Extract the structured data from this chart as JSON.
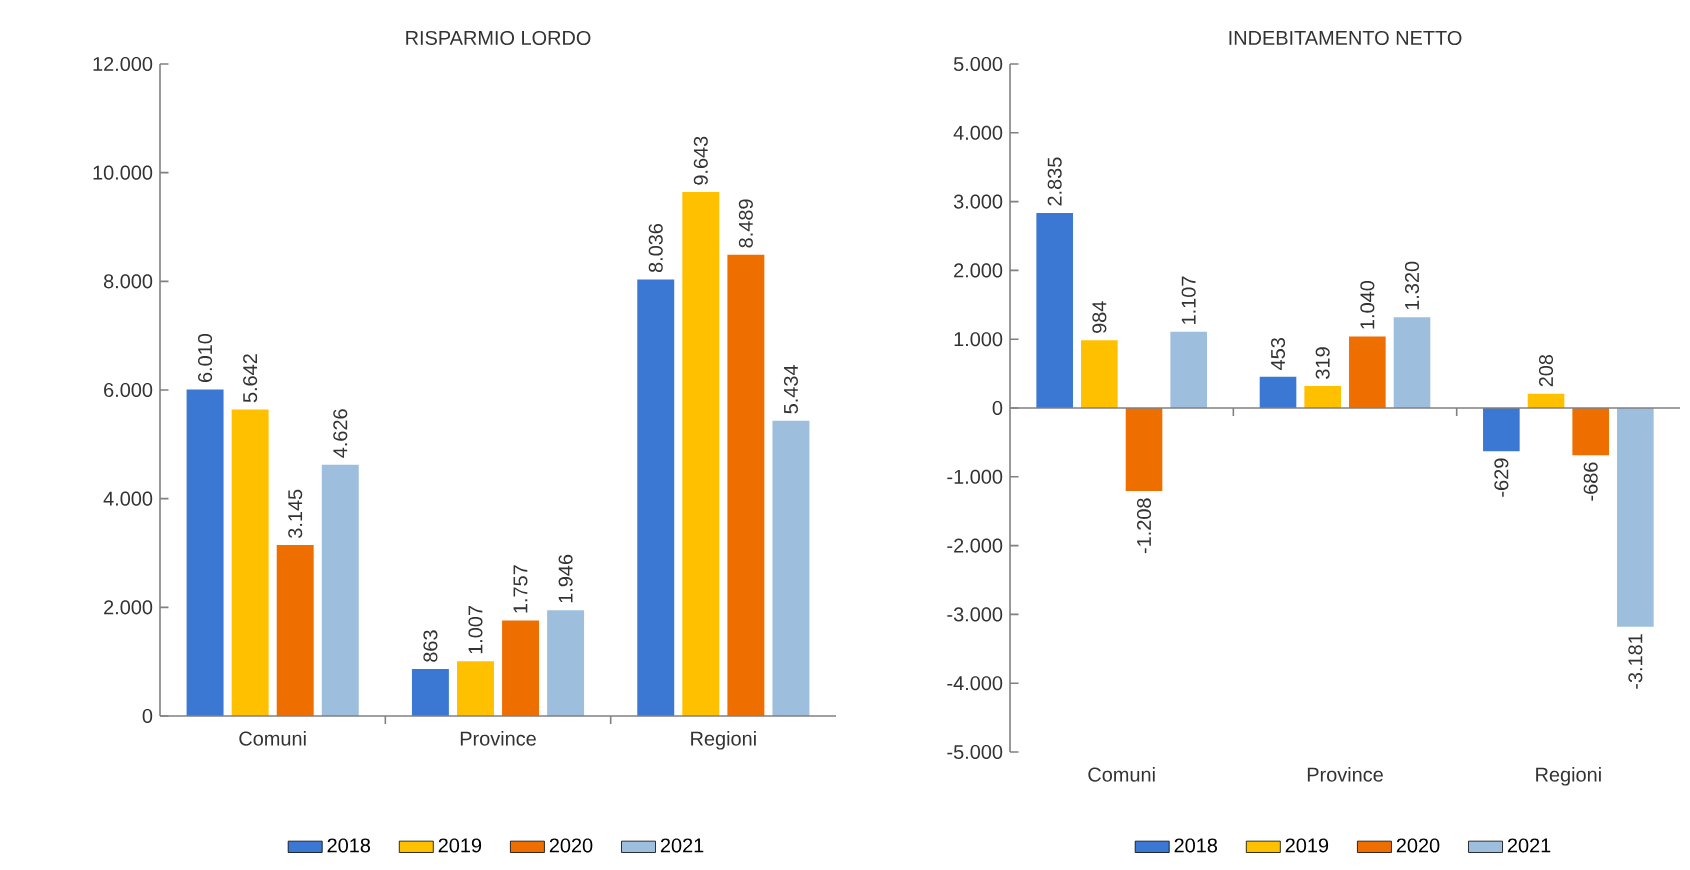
{
  "chart_data": [
    {
      "type": "bar",
      "title": "RISPARMIO LORDO",
      "categories": [
        "Comuni",
        "Province",
        "Regioni"
      ],
      "series": [
        {
          "name": "2018",
          "color": "#3a78d4",
          "values": [
            6010,
            863,
            8036
          ],
          "value_labels": [
            "6.010",
            "863",
            "8.036"
          ]
        },
        {
          "name": "2019",
          "color": "#ffc000",
          "values": [
            5642,
            1007,
            9643
          ],
          "value_labels": [
            "5.642",
            "1.007",
            "9.643"
          ]
        },
        {
          "name": "2020",
          "color": "#ee6f00",
          "values": [
            3145,
            1757,
            8489
          ],
          "value_labels": [
            "3.145",
            "1.757",
            "8.489"
          ]
        },
        {
          "name": "2021",
          "color": "#9dbfdd",
          "values": [
            4626,
            1946,
            5434
          ],
          "value_labels": [
            "4.626",
            "1.946",
            "5.434"
          ]
        }
      ],
      "ylim": [
        0,
        12000
      ],
      "yticks": [
        0,
        {
          "value": 2000,
          "label": "2.000"
        },
        {
          "value": 4000,
          "label": "4.000"
        },
        {
          "value": 6000,
          "label": "6.000"
        },
        {
          "value": 8000,
          "label": "8.000"
        },
        {
          "value": 10000,
          "label": "10.000"
        },
        {
          "value": 12000,
          "label": "12.000"
        }
      ],
      "legend": "bottom"
    },
    {
      "type": "bar",
      "title": "INDEBITAMENTO NETTO",
      "categories": [
        "Comuni",
        "Province",
        "Regioni"
      ],
      "series": [
        {
          "name": "2018",
          "color": "#3a78d4",
          "values": [
            2835,
            453,
            -629
          ],
          "value_labels": [
            "2.835",
            "453",
            "-629"
          ]
        },
        {
          "name": "2019",
          "color": "#ffc000",
          "values": [
            984,
            319,
            208
          ],
          "value_labels": [
            "984",
            "319",
            "208"
          ]
        },
        {
          "name": "2020",
          "color": "#ee6f00",
          "values": [
            -1208,
            1040,
            -686
          ],
          "value_labels": [
            "-1.208",
            "1.040",
            "-686"
          ]
        },
        {
          "name": "2021",
          "color": "#9dbfdd",
          "values": [
            1107,
            1320,
            -3181
          ],
          "value_labels": [
            "1.107",
            "1.320",
            "-3.181"
          ]
        }
      ],
      "ylim": [
        -5000,
        5000
      ],
      "yticks": [
        {
          "value": -5000,
          "label": "-5.000"
        },
        {
          "value": -4000,
          "label": "-4.000"
        },
        {
          "value": -3000,
          "label": "-3.000"
        },
        {
          "value": -2000,
          "label": "-2.000"
        },
        {
          "value": -1000,
          "label": "-1.000"
        },
        0,
        {
          "value": 1000,
          "label": "1.000"
        },
        {
          "value": 2000,
          "label": "2.000"
        },
        {
          "value": 3000,
          "label": "3.000"
        },
        {
          "value": 4000,
          "label": "4.000"
        },
        {
          "value": 5000,
          "label": "5.000"
        }
      ],
      "legend": "bottom"
    }
  ]
}
